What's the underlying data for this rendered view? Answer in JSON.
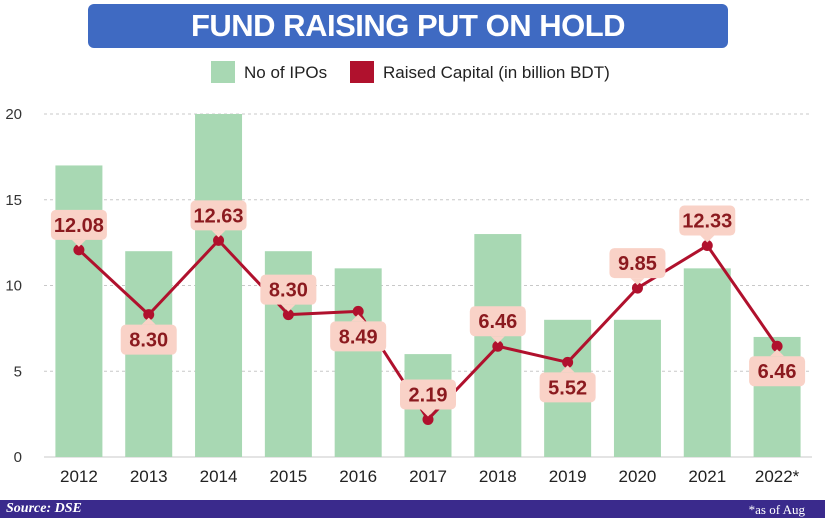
{
  "title": "FUND RAISING PUT ON HOLD",
  "chart_data": {
    "type": "bar",
    "categories": [
      "2012",
      "2013",
      "2014",
      "2015",
      "2016",
      "2017",
      "2018",
      "2019",
      "2020",
      "2021",
      "2022*"
    ],
    "series": [
      {
        "name": "No of IPOs",
        "kind": "bar",
        "color": "#a8d8b3",
        "values": [
          17,
          12,
          20,
          12,
          11,
          6,
          13,
          8,
          8,
          11,
          7
        ]
      },
      {
        "name": "Raised Capital (in billion BDT)",
        "kind": "line",
        "color": "#b0112d",
        "values": [
          12.08,
          8.3,
          12.63,
          8.3,
          8.49,
          2.19,
          6.46,
          5.52,
          9.85,
          12.33,
          6.46
        ]
      }
    ],
    "data_labels": [
      "12.08",
      "8.30",
      "12.63",
      "8.30",
      "8.49",
      "2.19",
      "6.46",
      "5.52",
      "9.85",
      "12.33",
      "6.46"
    ],
    "label_positions": [
      "above",
      "below",
      "above",
      "above",
      "below",
      "above",
      "above",
      "below",
      "above",
      "above",
      "below"
    ],
    "y_ticks": [
      "0",
      "5",
      "10",
      "15",
      "20"
    ],
    "ylim": [
      0,
      20
    ],
    "legend": [
      "No of IPOs",
      "Raised Capital (in billion BDT)"
    ],
    "legend_position": "top-center",
    "grid": true,
    "label_bg_color": "#f9d2c7",
    "label_text_color": "#8b1a1f"
  },
  "footer": {
    "source": "Source: DSE",
    "note": "*as of Aug"
  }
}
